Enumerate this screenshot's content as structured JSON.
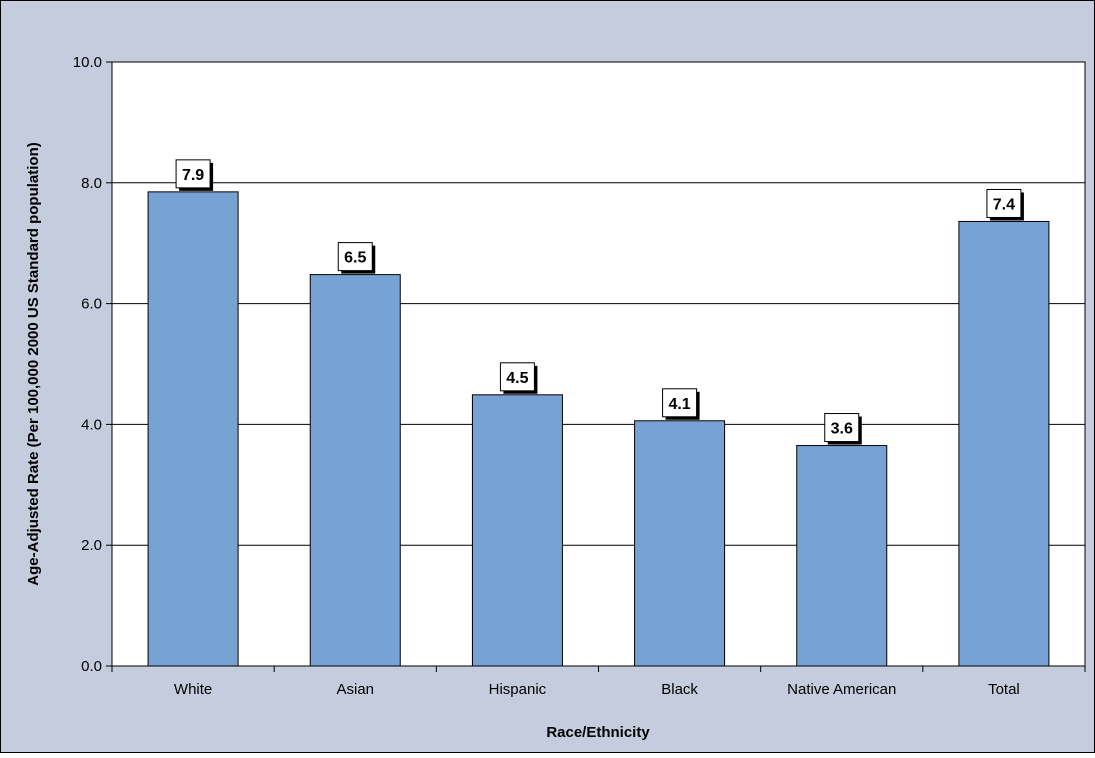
{
  "chart_data": {
    "type": "bar",
    "categories": [
      "White",
      "Asian",
      "Hispanic",
      "Black",
      "Native American",
      "Total"
    ],
    "values": [
      7.85,
      6.48,
      4.49,
      4.06,
      3.65,
      7.36
    ],
    "data_labels": [
      "7.9",
      "6.5",
      "4.5",
      "4.1",
      "3.6",
      "7.4"
    ],
    "y_ticks": [
      "0.0",
      "2.0",
      "4.0",
      "6.0",
      "8.0",
      "10.0"
    ],
    "xlabel": "Race/Ethnicity",
    "ylabel": "Age-Adjusted Rate (Per 100,000 2000 US Standard population)",
    "ylim": [
      0,
      10
    ],
    "grid": true,
    "legend": "none"
  },
  "colors": {
    "frame_background": "#c5ccdd",
    "plot_background": "#ffffff",
    "bar_fill": "#77a3d4",
    "bar_stroke": "#000000",
    "gridline": "#000000"
  }
}
